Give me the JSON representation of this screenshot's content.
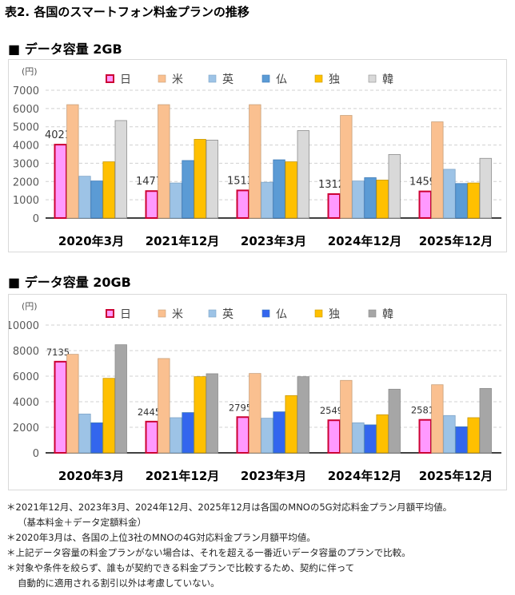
{
  "title": "表2. 各国のスマートフォン料金プランの推移",
  "colors": {
    "日_fill": "#ff99ff",
    "日_stroke": "#cc0033",
    "米": "#fac090",
    "英": "#9dc3e6",
    "仏_2GB": "#5b9bd5",
    "仏_20GB": "#3366ee",
    "独": "#ffc000",
    "韓_2GB": "#d9d9d9",
    "韓_20GB": "#a6a6a6"
  },
  "chart_data": [
    {
      "type": "bar",
      "heading": "■ データ容量 2GB",
      "unit": "(円)",
      "categories": [
        "2020年3月",
        "2021年12月",
        "2023年3月",
        "2024年12月",
        "2025年12月"
      ],
      "ylim": [
        0,
        7000
      ],
      "yticks": [
        0,
        1000,
        2000,
        3000,
        4000,
        5000,
        6000,
        7000
      ],
      "grid": true,
      "legend": "top",
      "series": [
        {
          "name": "日",
          "values": [
            4021,
            1477,
            1513,
            1312,
            1459
          ],
          "labels": [
            "4021",
            "1477",
            "1513",
            "1312",
            "1459"
          ]
        },
        {
          "name": "米",
          "values": [
            6210,
            6210,
            6210,
            5620,
            5270
          ]
        },
        {
          "name": "英",
          "values": [
            2290,
            1920,
            1960,
            2030,
            2670
          ]
        },
        {
          "name": "仏",
          "values": [
            2030,
            3150,
            3190,
            2210,
            1890
          ]
        },
        {
          "name": "独",
          "values": [
            3080,
            4310,
            3080,
            2080,
            1920
          ]
        },
        {
          "name": "韓",
          "values": [
            5340,
            4270,
            4790,
            3480,
            3270
          ]
        }
      ]
    },
    {
      "type": "bar",
      "heading": "■ データ容量 20GB",
      "unit": "(円)",
      "categories": [
        "2020年3月",
        "2021年12月",
        "2023年3月",
        "2024年12月",
        "2025年12月"
      ],
      "ylim": [
        0,
        10000
      ],
      "yticks": [
        0,
        2000,
        4000,
        6000,
        8000,
        10000
      ],
      "grid": true,
      "legend": "top",
      "series": [
        {
          "name": "日",
          "values": [
            7135,
            2445,
            2795,
            2549,
            2581
          ],
          "labels": [
            "7135",
            "2445",
            "2795",
            "2549",
            "2581"
          ]
        },
        {
          "name": "米",
          "values": [
            7710,
            7380,
            6210,
            5670,
            5330
          ]
        },
        {
          "name": "英",
          "values": [
            3040,
            2750,
            2710,
            2350,
            2920
          ]
        },
        {
          "name": "仏",
          "values": [
            2350,
            3150,
            3210,
            2190,
            2040
          ]
        },
        {
          "name": "独",
          "values": [
            5830,
            5960,
            4480,
            2980,
            2750
          ]
        },
        {
          "name": "韓",
          "values": [
            8460,
            6190,
            5960,
            4980,
            5040
          ]
        }
      ]
    }
  ],
  "notes": [
    "＊2021年12月、2023年3月、2024年12月、2025年12月は各国のMNOの5G対応料金プラン月額平均値。",
    "（基本料金＋データ定額料金）",
    "＊2020年3月は、各国の上位3社のMNOの4G対応料金プラン月額平均値。",
    "＊上記データ容量の料金プランがない場合は、それを超える一番近いデータ容量のプランで比較。",
    "＊対象や条件を絞らず、誰もが契約できる料金プランで比較するため、契約に伴って",
    "自動的に適用される割引以外は考慮していない。"
  ]
}
